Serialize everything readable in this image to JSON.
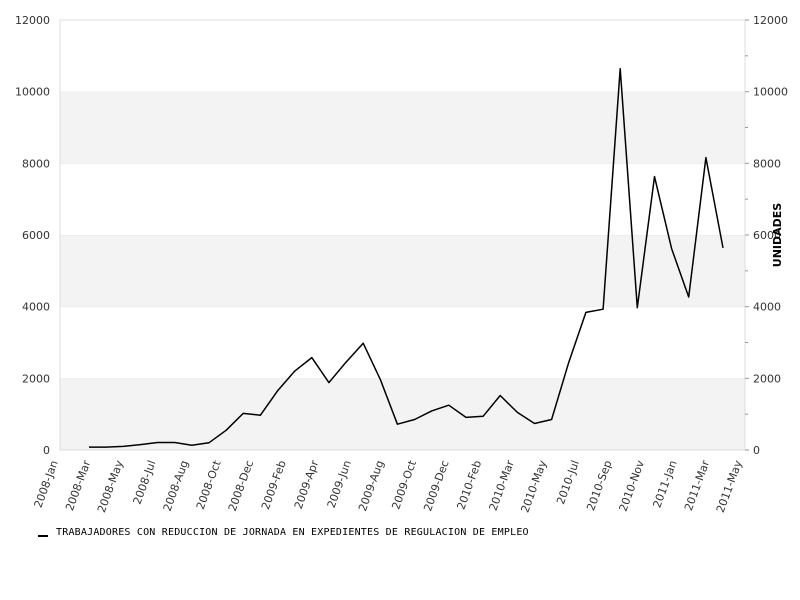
{
  "chart_data": {
    "type": "line",
    "ylim": [
      0,
      12000
    ],
    "yticks": [
      0,
      2000,
      4000,
      6000,
      8000,
      10000,
      12000
    ],
    "ylabel_right": "UNIDADES",
    "legend_position": "bottom-left",
    "grid": "horizontal-bands",
    "xtick_labels": [
      "2008-Jan",
      "2008-Mar",
      "2008-May",
      "2008-Jul",
      "2008-Aug",
      "2008-Oct",
      "2008-Dec",
      "2009-Feb",
      "2009-Apr",
      "2009-Jun",
      "2009-Aug",
      "2009-Oct",
      "2009-Dec",
      "2010-Feb",
      "2010-Mar",
      "2010-May",
      "2010-Jul",
      "2010-Sep",
      "2010-Nov",
      "2011-Jan",
      "2011-Mar",
      "2011-May"
    ],
    "series": [
      {
        "name": "TRABAJADORES CON REDUCCION DE JORNADA EN EXPEDIENTES DE REGULACION DE EMPLEO",
        "color": "#000000",
        "values": [
          80,
          80,
          100,
          150,
          210,
          210,
          130,
          200,
          550,
          1020,
          970,
          1650,
          2200,
          2580,
          1880,
          2450,
          2980,
          1970,
          720,
          850,
          1090,
          1250,
          910,
          940,
          1520,
          1050,
          740,
          850,
          2450,
          3840,
          3930,
          10640,
          3970,
          7630,
          5620,
          4270,
          8160,
          5640
        ]
      }
    ]
  },
  "colors": {
    "band": "#f3f3f3",
    "plot_border": "#dddddd",
    "line": "#000000"
  }
}
